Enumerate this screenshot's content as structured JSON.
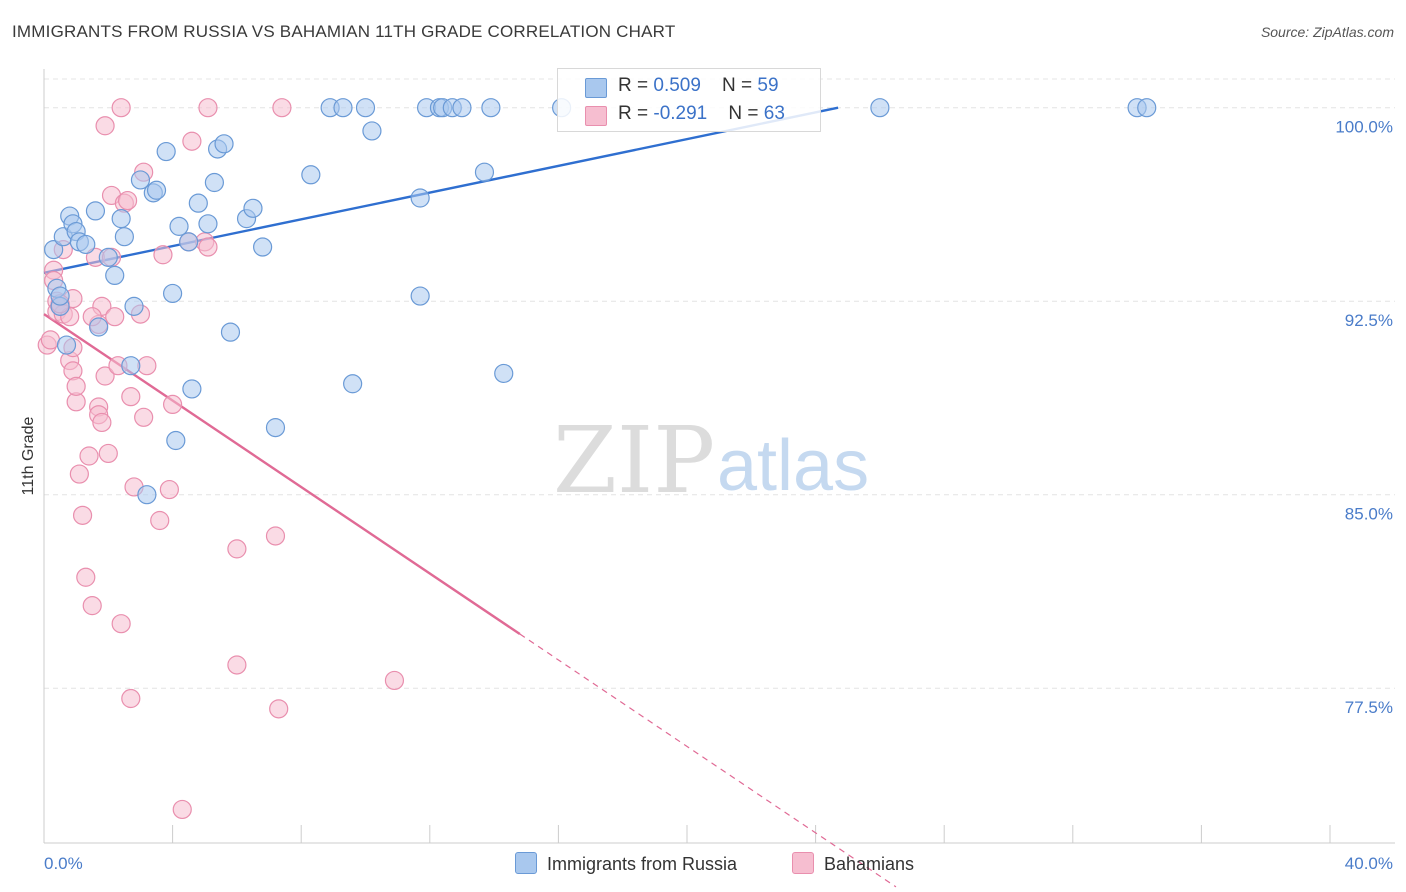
{
  "title": "IMMIGRANTS FROM RUSSIA VS BAHAMIAN 11TH GRADE CORRELATION CHART",
  "source": "Source: ZipAtlas.com",
  "watermark": {
    "zip": "ZIP",
    "atlas": "atlas"
  },
  "colors": {
    "blue_fill": "#a9c8ee",
    "blue_stroke": "#6a9ad6",
    "blue_line": "#2f6fd0",
    "pink_fill": "#f6bed0",
    "pink_stroke": "#e98fae",
    "pink_line": "#e06a95",
    "axis_label": "#4a7cc9",
    "grid": "#e4e4e4"
  },
  "legend_top": [
    {
      "r_label": "R = ",
      "r_value": "0.509",
      "n_label": "N = ",
      "n_value": "59"
    },
    {
      "r_label": "R = ",
      "r_value": "-0.291",
      "n_label": "N = ",
      "n_value": "63"
    }
  ],
  "chart_data": {
    "type": "scatter",
    "title": "IMMIGRANTS FROM RUSSIA VS BAHAMIAN 11TH GRADE CORRELATION CHART",
    "xlabel": "",
    "ylabel": "11th Grade",
    "xlim": [
      0,
      40
    ],
    "ylim": [
      71.5,
      101.5
    ],
    "x_tick_labels": [
      "0.0%",
      "40.0%"
    ],
    "y_ticks": [
      100.0,
      92.5,
      85.0,
      77.5
    ],
    "y_tick_labels": [
      "100.0%",
      "92.5%",
      "85.0%",
      "77.5%"
    ],
    "grid": true,
    "legend_position": "bottom",
    "series": [
      {
        "name": "Immigrants from Russia",
        "color": "#a9c8ee",
        "r": 0.509,
        "n": 59,
        "trend": {
          "x": [
            0,
            24.7
          ],
          "y": [
            93.6,
            100.0
          ],
          "style": "solid"
        },
        "points": [
          [
            0.3,
            94.5
          ],
          [
            0.4,
            93.0
          ],
          [
            0.5,
            92.3
          ],
          [
            0.5,
            92.7
          ],
          [
            0.6,
            95.0
          ],
          [
            0.7,
            90.8
          ],
          [
            0.8,
            95.8
          ],
          [
            0.9,
            95.5
          ],
          [
            1.0,
            95.2
          ],
          [
            1.1,
            94.8
          ],
          [
            1.3,
            94.7
          ],
          [
            1.6,
            96.0
          ],
          [
            1.7,
            91.5
          ],
          [
            2.0,
            94.2
          ],
          [
            2.2,
            93.5
          ],
          [
            2.4,
            95.7
          ],
          [
            2.5,
            95.0
          ],
          [
            2.7,
            90.0
          ],
          [
            2.8,
            92.3
          ],
          [
            3.0,
            97.2
          ],
          [
            3.2,
            85.0
          ],
          [
            3.4,
            96.7
          ],
          [
            3.5,
            96.8
          ],
          [
            3.8,
            98.3
          ],
          [
            4.0,
            92.8
          ],
          [
            4.1,
            87.1
          ],
          [
            4.2,
            95.4
          ],
          [
            4.5,
            94.8
          ],
          [
            4.6,
            89.1
          ],
          [
            4.8,
            96.3
          ],
          [
            5.1,
            95.5
          ],
          [
            5.3,
            97.1
          ],
          [
            5.4,
            98.4
          ],
          [
            5.6,
            98.6
          ],
          [
            5.8,
            91.3
          ],
          [
            6.3,
            95.7
          ],
          [
            6.5,
            96.1
          ],
          [
            6.8,
            94.6
          ],
          [
            7.2,
            87.6
          ],
          [
            8.3,
            97.4
          ],
          [
            8.9,
            100.0
          ],
          [
            9.3,
            100.0
          ],
          [
            9.6,
            89.3
          ],
          [
            10.0,
            100.0
          ],
          [
            10.2,
            99.1
          ],
          [
            11.7,
            96.5
          ],
          [
            11.7,
            92.7
          ],
          [
            11.9,
            100.0
          ],
          [
            12.3,
            100.0
          ],
          [
            12.4,
            100.0
          ],
          [
            12.7,
            100.0
          ],
          [
            13.0,
            100.0
          ],
          [
            13.7,
            97.5
          ],
          [
            13.9,
            100.0
          ],
          [
            14.3,
            89.7
          ],
          [
            16.1,
            100.0
          ],
          [
            26.0,
            100.0
          ],
          [
            34.0,
            100.0
          ],
          [
            34.3,
            100.0
          ]
        ]
      },
      {
        "name": "Bahamians",
        "color": "#f6bed0",
        "r": -0.291,
        "n": 63,
        "trend": {
          "x": [
            0,
            14.8
          ],
          "y": [
            92.0,
            79.6
          ],
          "style": "solid",
          "extension_x": [
            14.8,
            26.5
          ],
          "extension_y": [
            79.6,
            69.8
          ]
        },
        "points": [
          [
            0.1,
            90.8
          ],
          [
            0.2,
            91.0
          ],
          [
            0.3,
            93.7
          ],
          [
            0.3,
            93.3
          ],
          [
            0.4,
            92.5
          ],
          [
            0.4,
            92.1
          ],
          [
            0.5,
            92.3
          ],
          [
            0.6,
            94.5
          ],
          [
            0.6,
            92.0
          ],
          [
            0.8,
            91.9
          ],
          [
            0.8,
            90.2
          ],
          [
            0.9,
            92.6
          ],
          [
            0.9,
            89.8
          ],
          [
            1.0,
            88.6
          ],
          [
            1.0,
            89.2
          ],
          [
            1.1,
            85.8
          ],
          [
            1.2,
            84.2
          ],
          [
            1.3,
            81.8
          ],
          [
            1.4,
            86.5
          ],
          [
            1.5,
            80.7
          ],
          [
            1.6,
            94.2
          ],
          [
            1.7,
            88.4
          ],
          [
            1.7,
            88.1
          ],
          [
            1.7,
            91.6
          ],
          [
            1.8,
            92.3
          ],
          [
            1.9,
            99.3
          ],
          [
            1.9,
            89.6
          ],
          [
            2.0,
            86.6
          ],
          [
            2.1,
            94.2
          ],
          [
            2.1,
            96.6
          ],
          [
            2.2,
            91.9
          ],
          [
            2.3,
            90.0
          ],
          [
            2.4,
            80.0
          ],
          [
            2.5,
            96.3
          ],
          [
            2.6,
            96.4
          ],
          [
            2.7,
            88.8
          ],
          [
            2.7,
            77.1
          ],
          [
            2.8,
            85.3
          ],
          [
            3.1,
            97.5
          ],
          [
            3.1,
            88.0
          ],
          [
            3.2,
            90.0
          ],
          [
            3.6,
            84.0
          ],
          [
            3.7,
            94.3
          ],
          [
            3.9,
            85.2
          ],
          [
            4.0,
            88.5
          ],
          [
            4.3,
            72.8
          ],
          [
            4.5,
            94.8
          ],
          [
            4.6,
            98.7
          ],
          [
            5.0,
            94.8
          ],
          [
            5.1,
            94.6
          ],
          [
            5.1,
            100.0
          ],
          [
            6.0,
            78.4
          ],
          [
            6.0,
            82.9
          ],
          [
            7.2,
            83.4
          ],
          [
            7.3,
            76.7
          ],
          [
            7.4,
            100.0
          ],
          [
            10.9,
            77.8
          ],
          [
            1.5,
            91.9
          ],
          [
            3.0,
            92.0
          ],
          [
            1.8,
            87.8
          ],
          [
            0.9,
            90.7
          ],
          [
            2.4,
            100.0
          ],
          [
            0.5,
            92.4
          ]
        ]
      }
    ]
  }
}
